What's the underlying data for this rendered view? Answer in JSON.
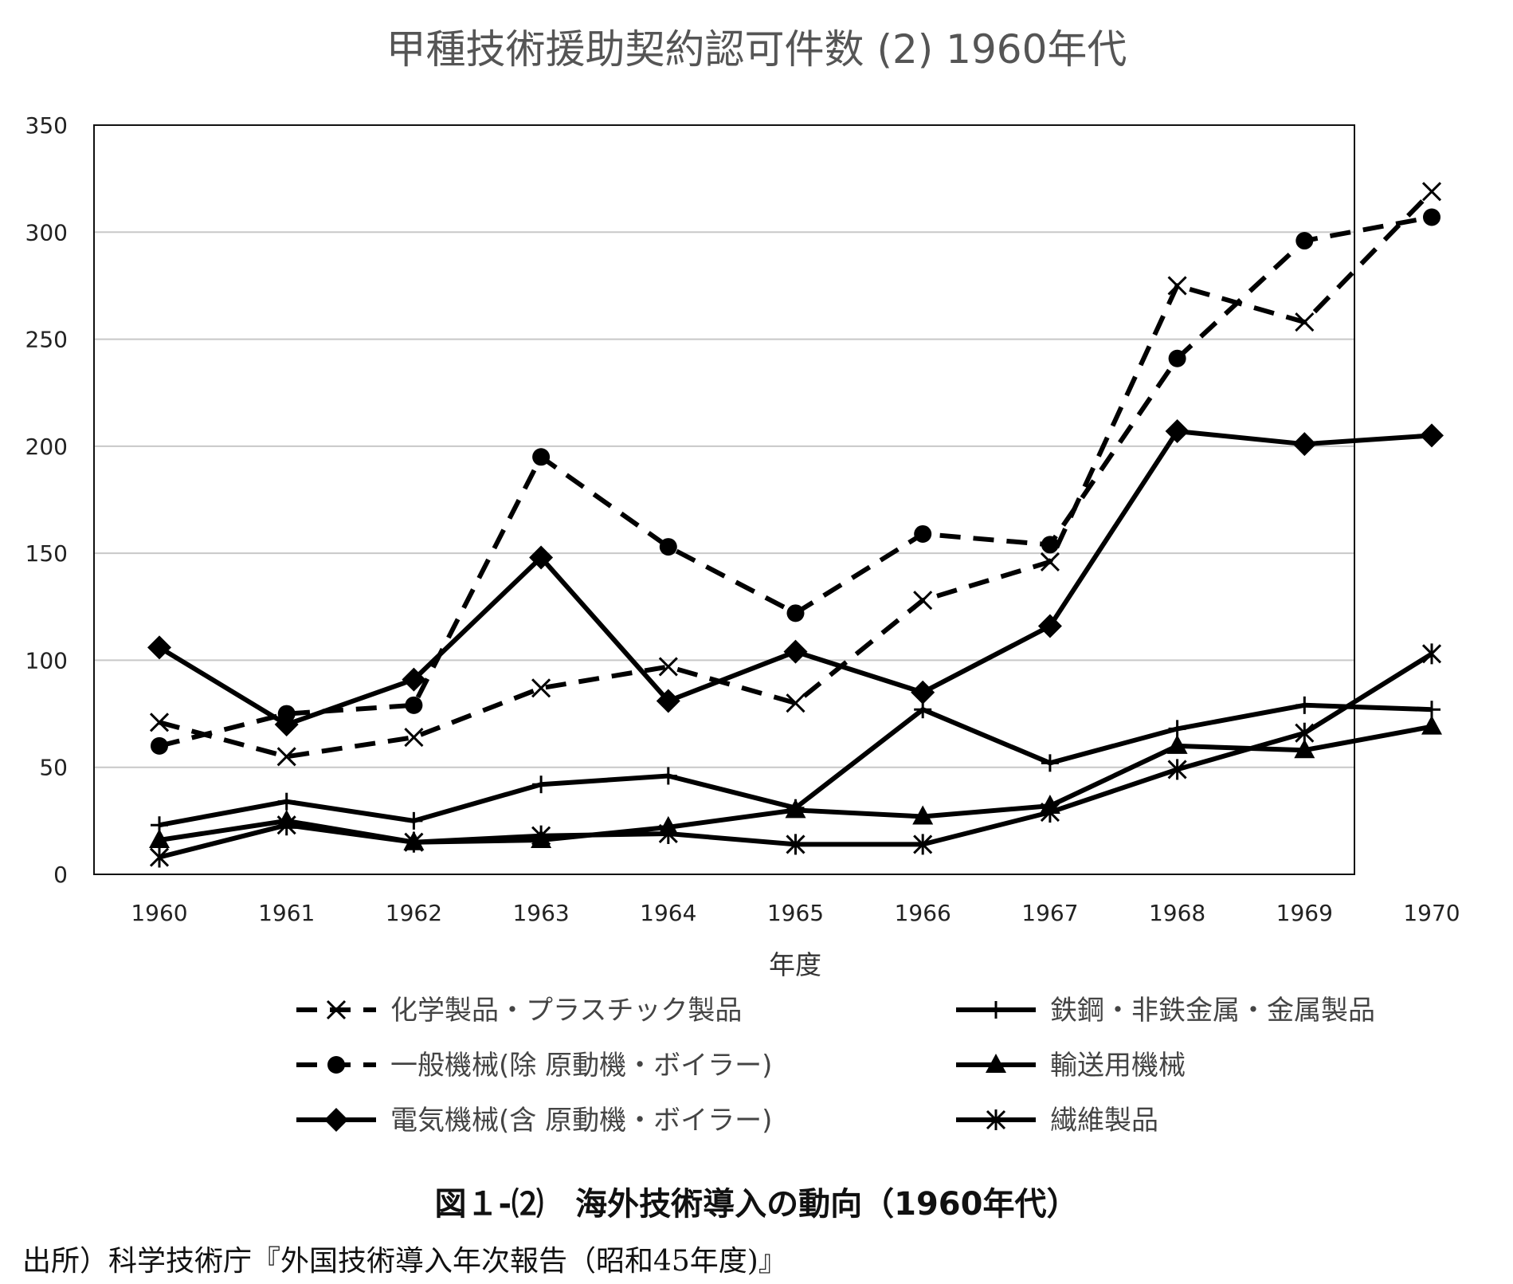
{
  "chart_data": {
    "type": "line",
    "title": "甲種技術援助契約認可件数 (2) 1960年代",
    "xlabel": "年度",
    "ylabel": "",
    "categories": [
      "1960",
      "1961",
      "1962",
      "1963",
      "1964",
      "1965",
      "1966",
      "1967",
      "1968",
      "1969",
      "1970"
    ],
    "ylim": [
      0,
      350
    ],
    "yticks": [
      0,
      50,
      100,
      150,
      200,
      250,
      300,
      350
    ],
    "grid": true,
    "legend_position": "bottom",
    "series": [
      {
        "name": "化学製品・プラスチック製品",
        "marker": "x",
        "dash": true,
        "values": [
          71,
          55,
          64,
          87,
          97,
          80,
          128,
          146,
          275,
          258,
          319
        ]
      },
      {
        "name": "一般機械(除 原動機・ボイラー)",
        "marker": "circle",
        "dash": true,
        "values": [
          60,
          75,
          79,
          195,
          153,
          122,
          159,
          154,
          241,
          296,
          307
        ]
      },
      {
        "name": "電気機械(含 原動機・ボイラー)",
        "marker": "diamond",
        "dash": false,
        "values": [
          106,
          70,
          91,
          148,
          81,
          104,
          85,
          116,
          207,
          201,
          205
        ]
      },
      {
        "name": "鉄鋼・非鉄金属・金属製品",
        "marker": "plus",
        "dash": false,
        "values": [
          23,
          34,
          25,
          42,
          46,
          31,
          77,
          52,
          68,
          79,
          77
        ]
      },
      {
        "name": "輸送用機械",
        "marker": "triangle",
        "dash": false,
        "values": [
          16,
          25,
          15,
          16,
          22,
          30,
          27,
          32,
          60,
          58,
          69
        ]
      },
      {
        "name": "繊維製品",
        "marker": "asterisk",
        "dash": false,
        "values": [
          8,
          23,
          15,
          18,
          19,
          14,
          14,
          29,
          49,
          66,
          103
        ]
      }
    ]
  },
  "caption": "図１-⑵　海外技術導入の動向（1960年代）",
  "source": "出所）科学技術庁『外国技術導入年次報告（昭和45年度)』"
}
